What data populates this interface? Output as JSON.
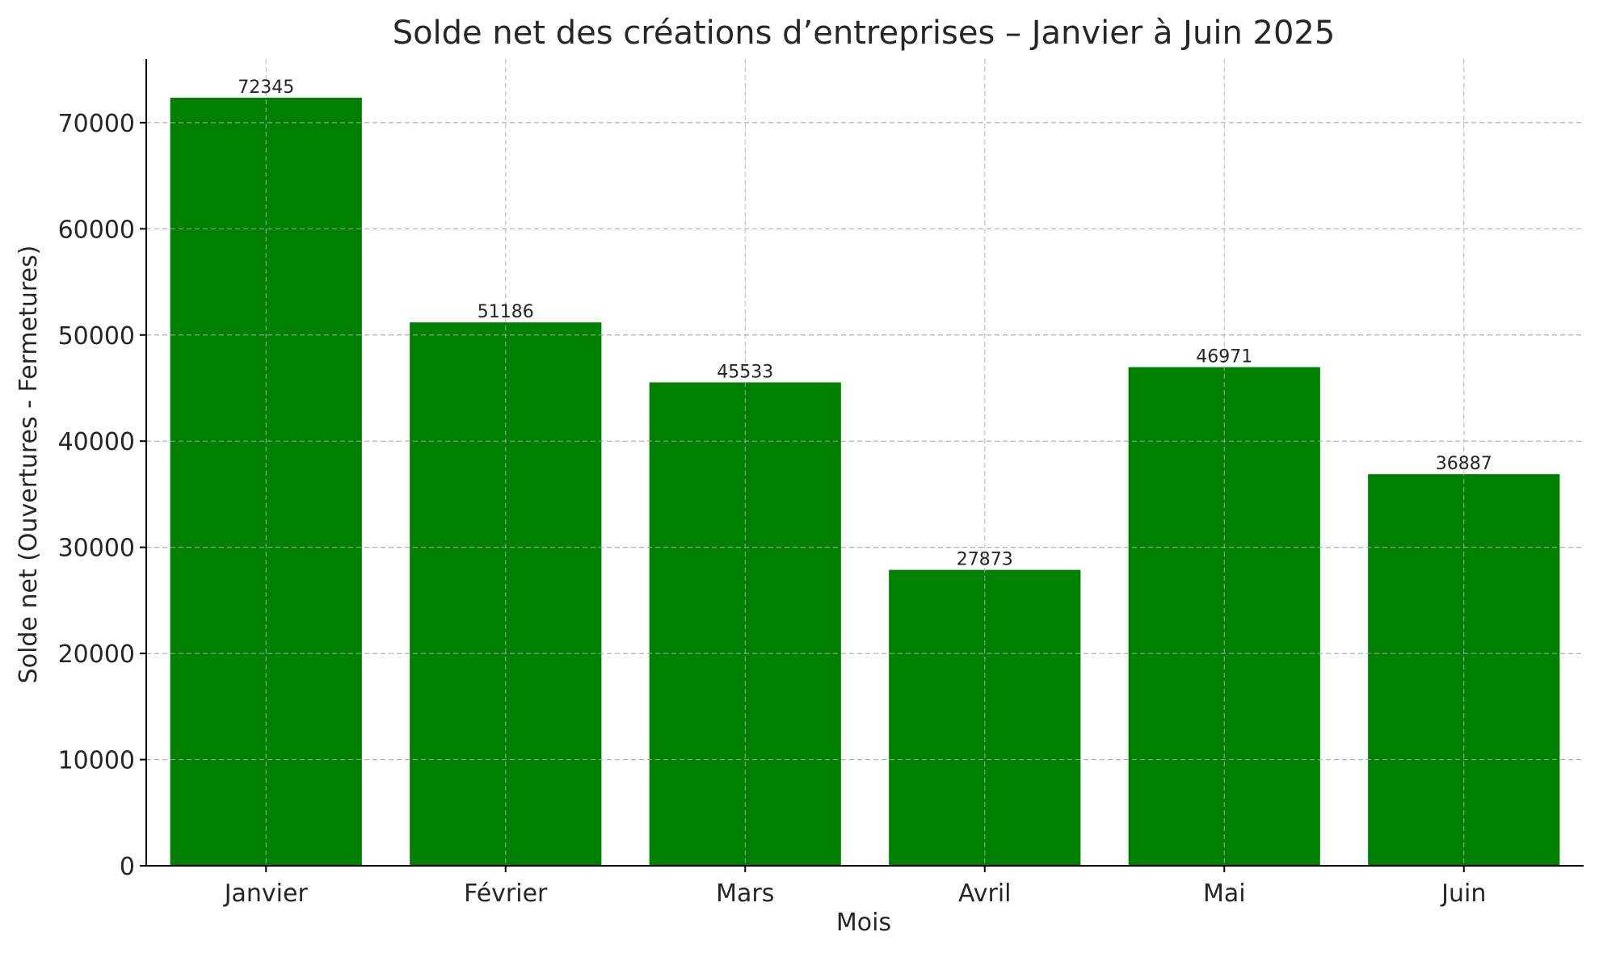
{
  "chart_data": {
    "type": "bar",
    "title": "Solde net des créations d’entreprises – Janvier à Juin 2025",
    "xlabel": "Mois",
    "ylabel": "Solde net (Ouvertures - Fermetures)",
    "categories": [
      "Janvier",
      "Février",
      "Mars",
      "Avril",
      "Mai",
      "Juin"
    ],
    "values": [
      72345,
      51186,
      45533,
      27873,
      46971,
      36887
    ],
    "value_labels": [
      "72345",
      "51186",
      "45533",
      "27873",
      "46971",
      "36887"
    ],
    "ylim": [
      0,
      76000
    ],
    "yticks": [
      0,
      10000,
      20000,
      30000,
      40000,
      50000,
      60000,
      70000
    ],
    "ytick_labels": [
      "0",
      "10000",
      "20000",
      "30000",
      "40000",
      "50000",
      "60000",
      "70000"
    ],
    "grid": true,
    "bar_color": "#008000"
  }
}
